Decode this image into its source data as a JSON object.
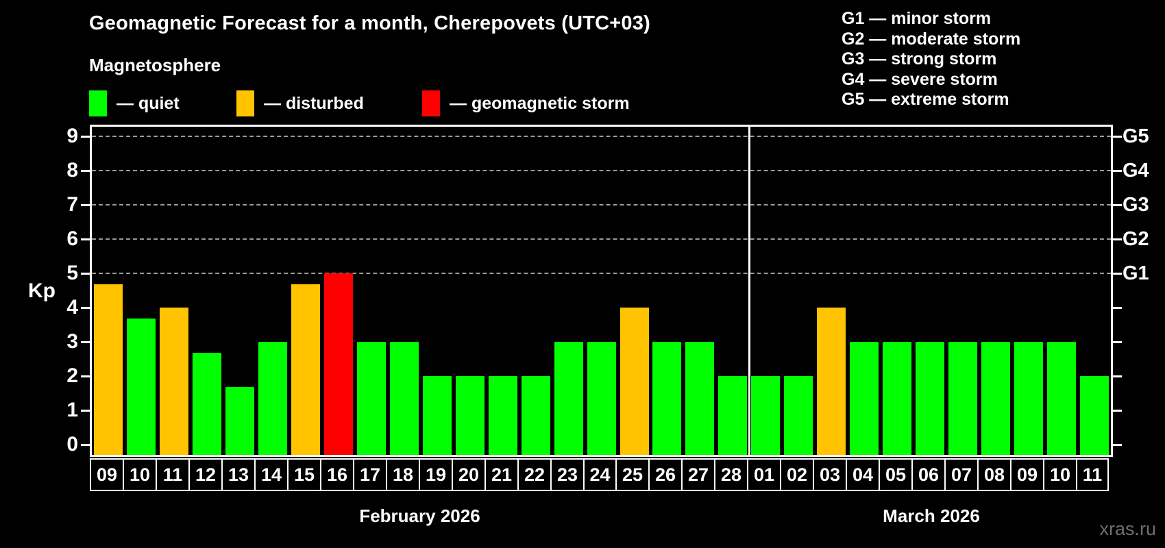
{
  "header": {
    "title": "Geomagnetic Forecast for a month, Cherepovets (UTC+03)",
    "subtitle": "Magnetosphere",
    "legend": [
      {
        "status": "quiet",
        "label": "— quiet"
      },
      {
        "status": "disturbed",
        "label": "— disturbed"
      },
      {
        "status": "storm",
        "label": "— geomagnetic storm"
      }
    ],
    "g_scale_legend": [
      "G1 — minor storm",
      "G2 — moderate storm",
      "G3 — strong storm",
      "G4 — severe storm",
      "G5 — extreme storm"
    ]
  },
  "watermark": "xras.ru",
  "colors": {
    "quiet": "#00ff00",
    "disturbed": "#ffc300",
    "storm": "#ff0000",
    "background": "#000000",
    "grid": "#9a9a9a",
    "axis": "#ffffff",
    "watermark": "#6f6f6f"
  },
  "chart_data": {
    "type": "bar",
    "title": "Geomagnetic Forecast for a month, Cherepovets (UTC+03)",
    "ylabel": "Kp",
    "ylim": [
      0,
      9.7
    ],
    "yticks": [
      0,
      1,
      2,
      3,
      4,
      5,
      6,
      7,
      8,
      9
    ],
    "grid_dashed_at_kp": [
      5,
      6,
      7,
      8,
      9
    ],
    "right_axis_labels": [
      {
        "kp": 5,
        "label": "G1"
      },
      {
        "kp": 6,
        "label": "G2"
      },
      {
        "kp": 7,
        "label": "G3"
      },
      {
        "kp": 8,
        "label": "G4"
      },
      {
        "kp": 9,
        "label": "G5"
      }
    ],
    "legend_position": "top-left",
    "grid": "dashed-storm-levels-only",
    "groups": [
      {
        "label": "February 2026",
        "categories": [
          "09",
          "10",
          "11",
          "12",
          "13",
          "14",
          "15",
          "16",
          "17",
          "18",
          "19",
          "20",
          "21",
          "22",
          "23",
          "24",
          "25",
          "26",
          "27",
          "28"
        ],
        "values": [
          4.67,
          3.67,
          4.0,
          2.67,
          1.67,
          3.0,
          4.67,
          5.0,
          3.0,
          3.0,
          2.0,
          2.0,
          2.0,
          2.0,
          3.0,
          3.0,
          4.0,
          3.0,
          3.0,
          2.0
        ],
        "status": [
          "disturbed",
          "quiet",
          "disturbed",
          "quiet",
          "quiet",
          "quiet",
          "disturbed",
          "storm",
          "quiet",
          "quiet",
          "quiet",
          "quiet",
          "quiet",
          "quiet",
          "quiet",
          "quiet",
          "disturbed",
          "quiet",
          "quiet",
          "quiet"
        ]
      },
      {
        "label": "March 2026",
        "categories": [
          "01",
          "02",
          "03",
          "04",
          "05",
          "06",
          "07",
          "08",
          "09",
          "10",
          "11"
        ],
        "values": [
          2.0,
          2.0,
          4.0,
          3.0,
          3.0,
          3.0,
          3.0,
          3.0,
          3.0,
          3.0,
          2.0
        ],
        "status": [
          "quiet",
          "quiet",
          "disturbed",
          "quiet",
          "quiet",
          "quiet",
          "quiet",
          "quiet",
          "quiet",
          "quiet",
          "quiet"
        ]
      }
    ]
  }
}
